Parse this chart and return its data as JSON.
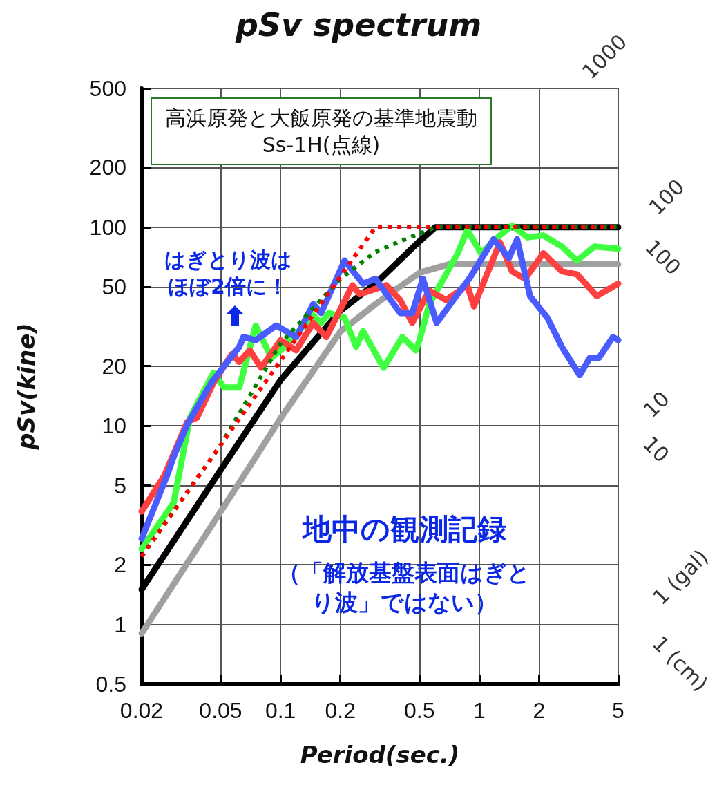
{
  "chart_data": {
    "type": "line",
    "title": "pSv spectrum",
    "xlabel": "Period(sec.)",
    "ylabel": "pSv(kine)",
    "log": "xy",
    "grid": true,
    "marker": "none",
    "xlim": [
      0.02,
      5
    ],
    "xticks": [
      0.02,
      0.05,
      0.1,
      0.2,
      0.5,
      1,
      2,
      5
    ],
    "ylim": [
      0.5,
      500
    ],
    "yticks": [
      0.5,
      1,
      2,
      5,
      10,
      20,
      50,
      100,
      200,
      500
    ],
    "annotations": [
      "高浜原発と大飯原発の基準地震動Ss-1H(点線)",
      "はぎとり波はほぼ2倍に！",
      "地中の観測記録",
      "（「解放基盤表面はぎとり波」ではない）",
      "1000",
      "100",
      "100",
      "10",
      "10",
      "1 (gal)",
      "1 (cm)"
    ],
    "series": [
      {
        "color": "#a0a0a0",
        "line_style": "solid",
        "x": [
          0.02,
          0.05,
          0.1,
          0.2,
          0.3,
          0.5,
          0.7,
          5
        ],
        "values": [
          0.9,
          3.7,
          10.9,
          29.8,
          41,
          59,
          65,
          65
        ]
      },
      {
        "color": "#000000",
        "line_style": "solid",
        "x": [
          0.02,
          0.05,
          0.1,
          0.2,
          0.3,
          0.5,
          0.6,
          5
        ],
        "values": [
          1.5,
          6,
          17,
          38,
          52,
          85,
          100,
          100
        ]
      },
      {
        "color": "#40ff40",
        "line_style": "solid",
        "x": [
          0.02,
          0.029,
          0.035,
          0.046,
          0.052,
          0.062,
          0.075,
          0.09,
          0.105,
          0.146,
          0.16,
          0.175,
          0.21,
          0.24,
          0.26,
          0.33,
          0.41,
          0.48,
          0.5,
          0.56,
          0.78,
          0.87,
          1.02,
          1.27,
          1.46,
          1.75,
          2.1,
          2.6,
          3.1,
          3.8,
          5
        ],
        "values": [
          2.4,
          4.1,
          11,
          18.5,
          15.6,
          15.6,
          32,
          22,
          25,
          36,
          33,
          37,
          35,
          25,
          30,
          19.6,
          28,
          24,
          27,
          41,
          74,
          97,
          74,
          91,
          102,
          89,
          91,
          80,
          68,
          80,
          78
        ]
      },
      {
        "color": "#ff4040",
        "line_style": "solid",
        "x": [
          0.02,
          0.026,
          0.034,
          0.038,
          0.046,
          0.057,
          0.062,
          0.07,
          0.08,
          0.1,
          0.12,
          0.146,
          0.17,
          0.23,
          0.25,
          0.34,
          0.4,
          0.46,
          0.56,
          0.68,
          0.87,
          0.94,
          1.27,
          1.46,
          1.7,
          2.1,
          2.6,
          3.1,
          3.9,
          5
        ],
        "values": [
          3.7,
          5.6,
          10.5,
          11,
          16.5,
          23,
          21,
          24,
          19.6,
          27,
          24,
          33,
          28,
          51,
          46,
          51,
          43,
          33,
          48,
          43,
          51,
          40,
          84,
          60,
          55,
          74,
          60,
          58,
          45,
          52
        ]
      },
      {
        "color": "#4a5cff",
        "line_style": "solid",
        "x": [
          0.02,
          0.027,
          0.029,
          0.034,
          0.045,
          0.062,
          0.065,
          0.075,
          0.095,
          0.12,
          0.146,
          0.16,
          0.21,
          0.26,
          0.3,
          0.4,
          0.46,
          0.52,
          0.61,
          0.9,
          1.18,
          1.41,
          1.55,
          1.8,
          2.2,
          2.6,
          3.2,
          3.6,
          4,
          4.7,
          5
        ],
        "values": [
          2.7,
          5.7,
          7,
          10.2,
          16.6,
          25,
          28,
          27,
          32,
          28,
          41,
          37,
          68,
          52,
          55,
          37,
          37,
          55,
          33,
          56,
          87,
          70,
          87,
          45,
          35,
          25,
          18,
          22,
          22,
          28,
          27
        ]
      },
      {
        "color": "#008000",
        "line_style": "dotted",
        "x": [
          0.02,
          0.05,
          0.1,
          0.2,
          0.3,
          0.4,
          0.6,
          5
        ],
        "values": [
          2.2,
          8,
          26,
          55,
          75,
          85,
          100,
          100
        ]
      },
      {
        "color": "#ff0000",
        "line_style": "dotted",
        "x": [
          0.02,
          0.3,
          5
        ],
        "values": [
          2.2,
          100,
          100
        ]
      }
    ]
  }
}
